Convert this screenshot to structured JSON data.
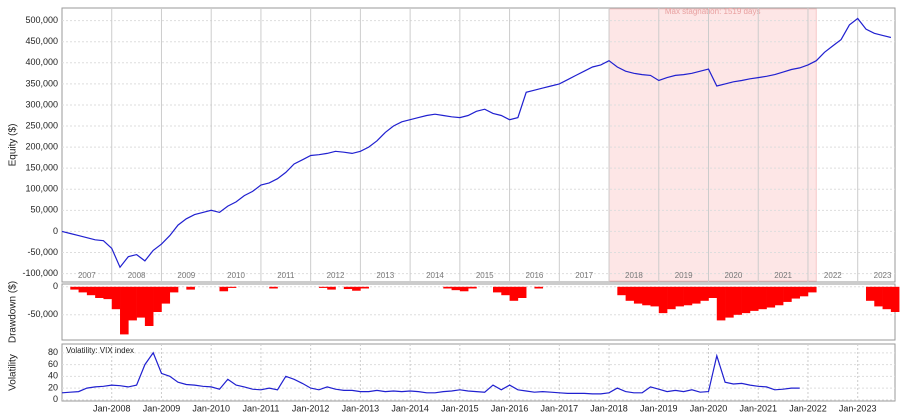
{
  "chart_data": [
    {
      "type": "line",
      "ylabel": "Equity ($)",
      "x": [
        "2007-01",
        "2007-03",
        "2007-05",
        "2007-07",
        "2007-09",
        "2007-11",
        "2008-01",
        "2008-03",
        "2008-05",
        "2008-07",
        "2008-09",
        "2008-11",
        "2009-01",
        "2009-03",
        "2009-05",
        "2009-07",
        "2009-09",
        "2009-11",
        "2010-01",
        "2010-03",
        "2010-05",
        "2010-07",
        "2010-09",
        "2010-11",
        "2011-01",
        "2011-03",
        "2011-05",
        "2011-07",
        "2011-09",
        "2011-11",
        "2012-01",
        "2012-03",
        "2012-05",
        "2012-07",
        "2012-09",
        "2012-11",
        "2013-01",
        "2013-03",
        "2013-05",
        "2013-07",
        "2013-09",
        "2013-11",
        "2014-01",
        "2014-03",
        "2014-05",
        "2014-07",
        "2014-09",
        "2014-11",
        "2015-01",
        "2015-03",
        "2015-05",
        "2015-07",
        "2015-09",
        "2015-11",
        "2016-01",
        "2016-03",
        "2016-05",
        "2016-07",
        "2016-09",
        "2016-11",
        "2017-01",
        "2017-03",
        "2017-05",
        "2017-07",
        "2017-09",
        "2017-11",
        "2018-01",
        "2018-03",
        "2018-05",
        "2018-07",
        "2018-09",
        "2018-11",
        "2019-01",
        "2019-03",
        "2019-05",
        "2019-07",
        "2019-09",
        "2019-11",
        "2020-01",
        "2020-03",
        "2020-05",
        "2020-07",
        "2020-09",
        "2020-11",
        "2021-01",
        "2021-03",
        "2021-05",
        "2021-07",
        "2021-09",
        "2021-11",
        "2022-01",
        "2022-03",
        "2022-05",
        "2022-07",
        "2022-09",
        "2022-11",
        "2023-01",
        "2023-03",
        "2023-05",
        "2023-07",
        "2023-09"
      ],
      "series": [
        {
          "color": "#2020d0",
          "values": [
            0,
            -5000,
            -10000,
            -15000,
            -20000,
            -22000,
            -40000,
            -85000,
            -60000,
            -55000,
            -70000,
            -45000,
            -30000,
            -10000,
            15000,
            30000,
            40000,
            45000,
            50000,
            45000,
            60000,
            70000,
            85000,
            95000,
            110000,
            115000,
            125000,
            140000,
            160000,
            170000,
            180000,
            182000,
            185000,
            190000,
            188000,
            185000,
            190000,
            200000,
            215000,
            235000,
            250000,
            260000,
            265000,
            270000,
            275000,
            278000,
            275000,
            272000,
            270000,
            275000,
            285000,
            290000,
            280000,
            275000,
            265000,
            270000,
            330000,
            335000,
            340000,
            345000,
            350000,
            360000,
            370000,
            380000,
            390000,
            395000,
            405000,
            390000,
            380000,
            375000,
            372000,
            370000,
            358000,
            365000,
            370000,
            372000,
            375000,
            380000,
            385000,
            345000,
            350000,
            355000,
            358000,
            362000,
            365000,
            368000,
            372000,
            378000,
            384000,
            388000,
            395000,
            405000,
            425000,
            440000,
            455000,
            490000,
            505000,
            480000,
            470000,
            465000,
            460000
          ]
        }
      ],
      "xlim": [
        "2007-01",
        "2023-10"
      ],
      "ylim": [
        -120000,
        530000
      ],
      "yticks": [
        {
          "value": -100000,
          "label": "-100,000"
        },
        {
          "value": -50000,
          "label": "-50,000"
        },
        0,
        {
          "value": 50000,
          "label": "50,000"
        },
        {
          "value": 100000,
          "label": "100,000"
        },
        {
          "value": 150000,
          "label": "150,000"
        },
        {
          "value": 200000,
          "label": "200,000"
        },
        {
          "value": 250000,
          "label": "250,000"
        },
        {
          "value": 300000,
          "label": "300,000"
        },
        {
          "value": 350000,
          "label": "350,000"
        },
        {
          "value": 400000,
          "label": "400,000"
        },
        {
          "value": 450000,
          "label": "450,000"
        },
        {
          "value": 500000,
          "label": "500,000"
        }
      ],
      "years": [
        "2007",
        "2008",
        "2009",
        "2010",
        "2011",
        "2012",
        "2013",
        "2014",
        "2015",
        "2016",
        "2017",
        "2018",
        "2019",
        "2020",
        "2021",
        "2022",
        "2023"
      ],
      "stagnation": {
        "label": "Max stagnation: 1519 days",
        "start": "2018-01",
        "end": "2022-03"
      },
      "grid": true
    },
    {
      "type": "bar",
      "ylabel": "Drawdown ($)",
      "x": [
        "2007-01",
        "2007-03",
        "2007-05",
        "2007-07",
        "2007-09",
        "2007-11",
        "2008-01",
        "2008-03",
        "2008-05",
        "2008-07",
        "2008-09",
        "2008-11",
        "2009-01",
        "2009-03",
        "2009-05",
        "2009-07",
        "2009-09",
        "2009-11",
        "2010-01",
        "2010-03",
        "2010-05",
        "2010-07",
        "2010-09",
        "2010-11",
        "2011-01",
        "2011-03",
        "2011-05",
        "2011-07",
        "2011-09",
        "2011-11",
        "2012-01",
        "2012-03",
        "2012-05",
        "2012-07",
        "2012-09",
        "2012-11",
        "2013-01",
        "2013-03",
        "2013-05",
        "2013-07",
        "2013-09",
        "2013-11",
        "2014-01",
        "2014-03",
        "2014-05",
        "2014-07",
        "2014-09",
        "2014-11",
        "2015-01",
        "2015-03",
        "2015-05",
        "2015-07",
        "2015-09",
        "2015-11",
        "2016-01",
        "2016-03",
        "2016-05",
        "2016-07",
        "2016-09",
        "2016-11",
        "2017-01",
        "2017-03",
        "2017-05",
        "2017-07",
        "2017-09",
        "2017-11",
        "2018-01",
        "2018-03",
        "2018-05",
        "2018-07",
        "2018-09",
        "2018-11",
        "2019-01",
        "2019-03",
        "2019-05",
        "2019-07",
        "2019-09",
        "2019-11",
        "2020-01",
        "2020-03",
        "2020-05",
        "2020-07",
        "2020-09",
        "2020-11",
        "2021-01",
        "2021-03",
        "2021-05",
        "2021-07",
        "2021-09",
        "2021-11",
        "2022-01",
        "2022-03",
        "2022-05",
        "2022-07",
        "2022-09",
        "2022-11",
        "2023-01",
        "2023-03",
        "2023-05",
        "2023-07",
        "2023-09"
      ],
      "series": [
        {
          "color": "#ff0000",
          "values": [
            0,
            -5000,
            -10000,
            -15000,
            -20000,
            -22000,
            -40000,
            -85000,
            -60000,
            -55000,
            -70000,
            -45000,
            -30000,
            -10000,
            0,
            -5000,
            0,
            0,
            0,
            -8000,
            -2000,
            0,
            0,
            0,
            0,
            -3000,
            0,
            0,
            0,
            0,
            0,
            -2000,
            -5000,
            0,
            -4000,
            -7000,
            -3000,
            0,
            0,
            0,
            0,
            0,
            0,
            0,
            0,
            0,
            -3000,
            -6000,
            -8000,
            -3000,
            0,
            0,
            -10000,
            -15000,
            -25000,
            -20000,
            0,
            -3000,
            0,
            0,
            0,
            0,
            0,
            0,
            0,
            0,
            0,
            -15000,
            -25000,
            -30000,
            -33000,
            -35000,
            -47000,
            -40000,
            -35000,
            -33000,
            -30000,
            -25000,
            -20000,
            -60000,
            -55000,
            -50000,
            -47000,
            -43000,
            -40000,
            -37000,
            -33000,
            -27000,
            -21000,
            -17000,
            -10000,
            0,
            0,
            0,
            0,
            0,
            0,
            -25000,
            -35000,
            -40000,
            -45000
          ]
        }
      ],
      "xlim": [
        "2007-01",
        "2023-10"
      ],
      "ylim": [
        -95000,
        5000
      ],
      "yticks": [
        {
          "value": -50000,
          "label": "-50,000"
        },
        0
      ],
      "grid": true
    },
    {
      "type": "line",
      "ylabel": "Volatility",
      "x": [
        "2007-01",
        "2007-03",
        "2007-05",
        "2007-07",
        "2007-09",
        "2007-11",
        "2008-01",
        "2008-03",
        "2008-05",
        "2008-07",
        "2008-09",
        "2008-11",
        "2009-01",
        "2009-03",
        "2009-05",
        "2009-07",
        "2009-09",
        "2009-11",
        "2010-01",
        "2010-03",
        "2010-05",
        "2010-07",
        "2010-09",
        "2010-11",
        "2011-01",
        "2011-03",
        "2011-05",
        "2011-07",
        "2011-09",
        "2011-11",
        "2012-01",
        "2012-03",
        "2012-05",
        "2012-07",
        "2012-09",
        "2012-11",
        "2013-01",
        "2013-03",
        "2013-05",
        "2013-07",
        "2013-09",
        "2013-11",
        "2014-01",
        "2014-03",
        "2014-05",
        "2014-07",
        "2014-09",
        "2014-11",
        "2015-01",
        "2015-03",
        "2015-05",
        "2015-07",
        "2015-09",
        "2015-11",
        "2016-01",
        "2016-03",
        "2016-05",
        "2016-07",
        "2016-09",
        "2016-11",
        "2017-01",
        "2017-03",
        "2017-05",
        "2017-07",
        "2017-09",
        "2017-11",
        "2018-01",
        "2018-03",
        "2018-05",
        "2018-07",
        "2018-09",
        "2018-11",
        "2019-01",
        "2019-03",
        "2019-05",
        "2019-07",
        "2019-09",
        "2019-11",
        "2020-01",
        "2020-03",
        "2020-05",
        "2020-07",
        "2020-09",
        "2020-11",
        "2021-01",
        "2021-03",
        "2021-05",
        "2021-07",
        "2021-09",
        "2021-11",
        "2022-01",
        "2022-03",
        "2022-05",
        "2022-07",
        "2022-09",
        "2022-11",
        "2023-01",
        "2023-03",
        "2023-05",
        "2023-07",
        "2023-09"
      ],
      "series": [
        {
          "name": "Volatility: VIX index",
          "color": "#2020d0",
          "values": [
            12,
            13,
            14,
            20,
            22,
            23,
            25,
            24,
            22,
            25,
            60,
            80,
            45,
            40,
            30,
            26,
            25,
            23,
            22,
            18,
            35,
            25,
            22,
            18,
            17,
            20,
            17,
            40,
            35,
            28,
            20,
            17,
            22,
            18,
            16,
            16,
            14,
            14,
            16,
            14,
            15,
            14,
            15,
            14,
            12,
            12,
            14,
            15,
            17,
            15,
            14,
            13,
            25,
            17,
            25,
            17,
            15,
            13,
            14,
            13,
            12,
            11,
            11,
            11,
            10,
            10,
            12,
            20,
            14,
            12,
            12,
            22,
            18,
            14,
            16,
            14,
            17,
            13,
            14,
            75,
            30,
            27,
            28,
            25,
            23,
            22,
            17,
            18,
            20,
            20,
            null,
            null,
            null,
            null,
            null,
            null,
            null,
            null,
            null,
            null,
            null
          ]
        }
      ],
      "xlim": [
        "2007-01",
        "2023-10"
      ],
      "ylim": [
        -2,
        95
      ],
      "yticks": [
        0,
        20,
        40,
        60,
        80
      ],
      "xticks": [
        {
          "value": "2008-01",
          "label": "Jan-2008"
        },
        {
          "value": "2009-01",
          "label": "Jan-2009"
        },
        {
          "value": "2010-01",
          "label": "Jan-2010"
        },
        {
          "value": "2011-01",
          "label": "Jan-2011"
        },
        {
          "value": "2012-01",
          "label": "Jan-2012"
        },
        {
          "value": "2013-01",
          "label": "Jan-2013"
        },
        {
          "value": "2014-01",
          "label": "Jan-2014"
        },
        {
          "value": "2015-01",
          "label": "Jan-2015"
        },
        {
          "value": "2016-01",
          "label": "Jan-2016"
        },
        {
          "value": "2017-01",
          "label": "Jan-2017"
        },
        {
          "value": "2018-01",
          "label": "Jan-2018"
        },
        {
          "value": "2019-01",
          "label": "Jan-2019"
        },
        {
          "value": "2020-01",
          "label": "Jan-2020"
        },
        {
          "value": "2021-01",
          "label": "Jan-2021"
        },
        {
          "value": "2022-01",
          "label": "Jan-2022"
        },
        {
          "value": "2023-01",
          "label": "Jan-2023"
        }
      ],
      "grid": true
    }
  ]
}
